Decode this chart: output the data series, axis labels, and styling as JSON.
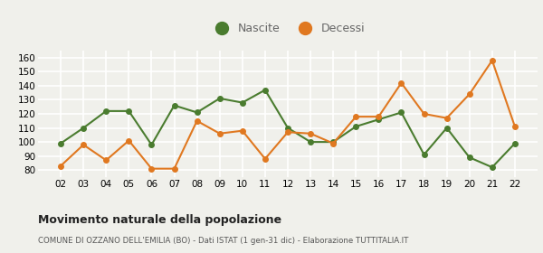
{
  "years": [
    "02",
    "03",
    "04",
    "05",
    "06",
    "07",
    "08",
    "09",
    "10",
    "11",
    "12",
    "13",
    "14",
    "15",
    "16",
    "17",
    "18",
    "19",
    "20",
    "21",
    "22"
  ],
  "nascite": [
    99,
    110,
    122,
    122,
    98,
    126,
    121,
    131,
    128,
    137,
    110,
    100,
    100,
    111,
    116,
    121,
    91,
    110,
    89,
    82,
    99
  ],
  "decessi": [
    83,
    98,
    87,
    101,
    81,
    81,
    115,
    106,
    108,
    88,
    107,
    106,
    99,
    118,
    118,
    142,
    120,
    117,
    134,
    158,
    111
  ],
  "nascite_color": "#4a7c2f",
  "decessi_color": "#e07820",
  "background_color": "#f0f0eb",
  "grid_color": "#ffffff",
  "title": "Movimento naturale della popolazione",
  "subtitle": "COMUNE DI OZZANO DELL'EMILIA (BO) - Dati ISTAT (1 gen-31 dic) - Elaborazione TUTTITALIA.IT",
  "ylim": [
    75,
    165
  ],
  "yticks": [
    80,
    90,
    100,
    110,
    120,
    130,
    140,
    150,
    160
  ],
  "legend_nascite": "Nascite",
  "legend_decessi": "Decessi"
}
